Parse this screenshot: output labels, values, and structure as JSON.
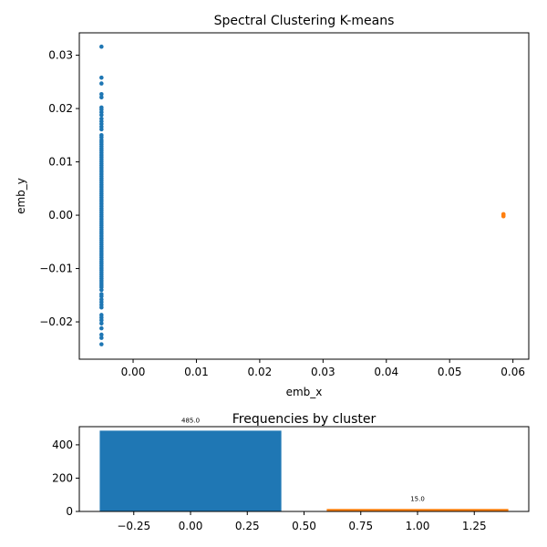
{
  "chart_data": [
    {
      "type": "scatter",
      "title": "Spectral Clustering K-means",
      "xlabel": "emb_x",
      "ylabel": "emb_y",
      "xlim": [
        -0.0085,
        0.0625
      ],
      "ylim": [
        -0.027,
        0.0342
      ],
      "xticks": [
        0.0,
        0.01,
        0.02,
        0.03,
        0.04,
        0.05,
        0.06
      ],
      "xtick_labels": [
        "0.00",
        "0.01",
        "0.02",
        "0.03",
        "0.04",
        "0.05",
        "0.06"
      ],
      "yticks": [
        -0.02,
        -0.01,
        0.0,
        0.01,
        0.02,
        0.03
      ],
      "ytick_labels": [
        "−0.02",
        "−0.01",
        "0.00",
        "0.01",
        "0.02",
        "0.03"
      ],
      "grid": false,
      "series": [
        {
          "color": "#1f77b4",
          "x": -0.005,
          "y": [
            0.0316,
            0.0258,
            0.0247,
            0.0227,
            0.0221,
            0.0202,
            0.0198,
            0.0193,
            0.0188,
            0.0181,
            0.0176,
            0.0171,
            0.0166,
            0.0161,
            0.015,
            0.0146,
            0.0141,
            0.0137,
            0.0133,
            0.0129,
            0.0125,
            0.0121,
            0.0117,
            0.0113,
            0.0109,
            0.0105,
            0.0101,
            0.0097,
            0.0093,
            0.0089,
            0.0085,
            0.0081,
            0.0077,
            0.0073,
            0.0069,
            0.0065,
            0.0061,
            0.0057,
            0.0053,
            0.0049,
            0.0045,
            0.0041,
            0.0037,
            0.0033,
            0.0029,
            0.0025,
            0.0021,
            0.0017,
            0.0013,
            0.0009,
            0.0005,
            0.0001,
            -0.0003,
            -0.0007,
            -0.0011,
            -0.0015,
            -0.0019,
            -0.0023,
            -0.0027,
            -0.0031,
            -0.0035,
            -0.0039,
            -0.0043,
            -0.0047,
            -0.0051,
            -0.0055,
            -0.0059,
            -0.0063,
            -0.0067,
            -0.0071,
            -0.0075,
            -0.0079,
            -0.0083,
            -0.0087,
            -0.0091,
            -0.0095,
            -0.0099,
            -0.0103,
            -0.0107,
            -0.0111,
            -0.0115,
            -0.0119,
            -0.0123,
            -0.0127,
            -0.0131,
            -0.0135,
            -0.014,
            -0.0148,
            -0.0152,
            -0.0158,
            -0.0163,
            -0.0168,
            -0.0173,
            -0.0187,
            -0.0192,
            -0.0197,
            -0.0203,
            -0.0212,
            -0.0224,
            -0.023,
            -0.0242
          ]
        },
        {
          "color": "#ff7f0e",
          "x": 0.0585,
          "y": [
            0.0002,
            0.0,
            -0.0002
          ]
        }
      ]
    },
    {
      "type": "bar",
      "title": "Frequencies by cluster",
      "categories": [
        0,
        1
      ],
      "values": [
        485,
        15
      ],
      "bar_labels": [
        "485.0",
        "15.0"
      ],
      "colors": [
        "#1f77b4",
        "#ff7f0e"
      ],
      "bar_width": 0.8,
      "xlim": [
        -0.49,
        1.49
      ],
      "ylim": [
        0,
        509
      ],
      "xticks": [
        -0.25,
        0.0,
        0.25,
        0.5,
        0.75,
        1.0,
        1.25
      ],
      "xtick_labels": [
        "−0.25",
        "0.00",
        "0.25",
        "0.50",
        "0.75",
        "1.00",
        "1.25"
      ],
      "yticks": [
        0,
        200,
        400
      ],
      "ytick_labels": [
        "0",
        "200",
        "400"
      ],
      "xlabel": "",
      "ylabel": "",
      "grid": false
    }
  ]
}
